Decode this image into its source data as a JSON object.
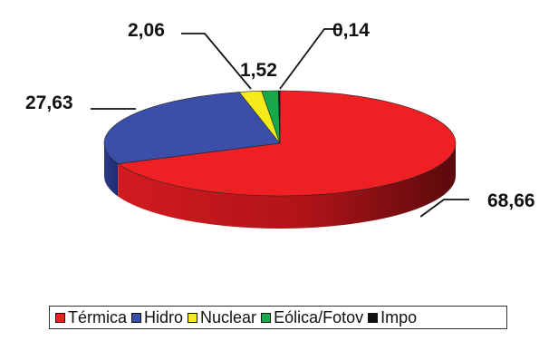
{
  "chart_data": {
    "type": "pie",
    "style": "3d",
    "series": [
      {
        "name": "Térmica",
        "value": 68.66,
        "label": "68,66",
        "color": "#ee2024"
      },
      {
        "name": "Hidro",
        "value": 27.63,
        "label": "27,63",
        "color": "#3b4fa8"
      },
      {
        "name": "Nuclear",
        "value": 2.06,
        "label": "2,06",
        "color": "#f6ea1a"
      },
      {
        "name": "Eólica/Fotov",
        "value": 1.52,
        "label": "1,52",
        "color": "#16a94a"
      },
      {
        "name": "Impo",
        "value": 0.14,
        "label": "0,14",
        "color": "#111111"
      }
    ],
    "legend_position": "bottom"
  },
  "legend": {
    "items": [
      {
        "label": "Térmica",
        "color": "#ee2024"
      },
      {
        "label": "Hidro",
        "color": "#3b4fa8"
      },
      {
        "label": "Nuclear",
        "color": "#f6ea1a"
      },
      {
        "label": "Eólica/Fotov",
        "color": "#16a94a"
      },
      {
        "label": "Impo",
        "color": "#111111"
      }
    ]
  }
}
